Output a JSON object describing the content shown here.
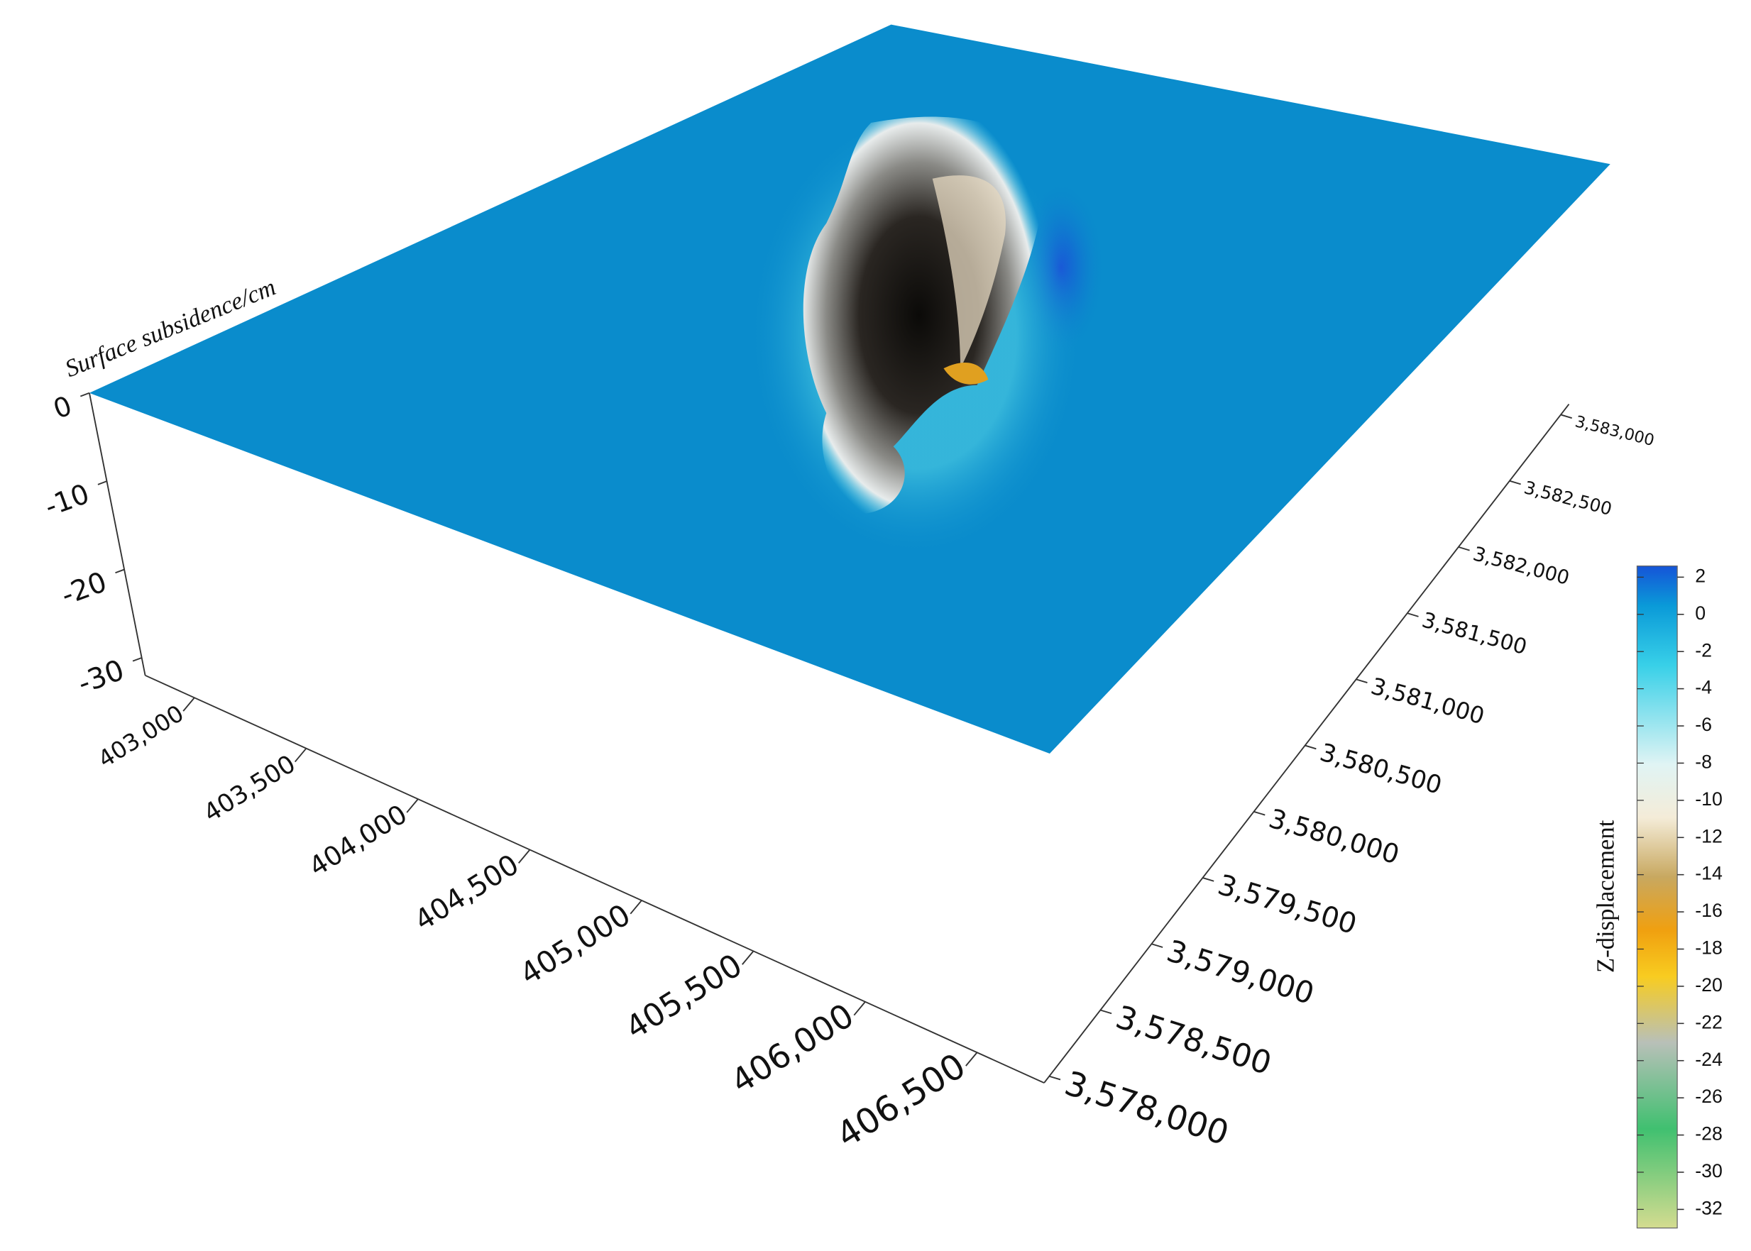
{
  "chart_data": {
    "type": "surface3d",
    "zlabel": "Surface subsidence/cm",
    "zlim": [
      0,
      -32
    ],
    "zticks": [
      0,
      -10,
      -20,
      -30
    ],
    "xlim": [
      402780,
      406800
    ],
    "xticks": [
      {
        "value": 403000,
        "label": "403,000"
      },
      {
        "value": 403500,
        "label": "403,500"
      },
      {
        "value": 404000,
        "label": "404,000"
      },
      {
        "value": 404500,
        "label": "404,500"
      },
      {
        "value": 405000,
        "label": "405,000"
      },
      {
        "value": 405500,
        "label": "405,500"
      },
      {
        "value": 406000,
        "label": "406,000"
      },
      {
        "value": 406500,
        "label": "406,500"
      }
    ],
    "ylim": [
      3577950,
      3583080
    ],
    "yticks": [
      {
        "value": 3578000,
        "label": "3,578,000"
      },
      {
        "value": 3578500,
        "label": "3,578,500"
      },
      {
        "value": 3579000,
        "label": "3,579,000"
      },
      {
        "value": 3579500,
        "label": "3,579,500"
      },
      {
        "value": 3580000,
        "label": "3,580,000"
      },
      {
        "value": 3580500,
        "label": "3,580,500"
      },
      {
        "value": 3581000,
        "label": "3,581,000"
      },
      {
        "value": 3581500,
        "label": "3,581,500"
      },
      {
        "value": 3582000,
        "label": "3,582,000"
      },
      {
        "value": 3582500,
        "label": "3,582,500"
      },
      {
        "value": 3583000,
        "label": "3,583,000"
      }
    ],
    "colorbar": {
      "label": "Z-displacement",
      "lim": [
        -33,
        2.6
      ],
      "ticks": [
        2,
        0,
        -2,
        -4,
        -6,
        -8,
        -10,
        -12,
        -14,
        -16,
        -18,
        -20,
        -22,
        -24,
        -26,
        -28,
        -30,
        -32
      ]
    }
  }
}
